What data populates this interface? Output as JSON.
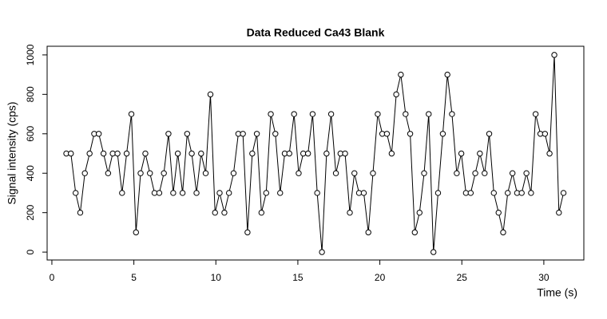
{
  "chart_data": {
    "type": "line",
    "title": "Data Reduced Ca43 Blank",
    "x_label": "Time (s)",
    "y_label": "Signal intensity (cps)",
    "x": [
      0.88,
      1.16,
      1.45,
      1.73,
      2.01,
      2.3,
      2.58,
      2.86,
      3.15,
      3.43,
      3.71,
      4.0,
      4.28,
      4.56,
      4.85,
      5.13,
      5.41,
      5.7,
      5.98,
      6.26,
      6.55,
      6.83,
      7.11,
      7.4,
      7.68,
      7.97,
      8.25,
      8.53,
      8.82,
      9.1,
      9.38,
      9.67,
      9.95,
      10.23,
      10.52,
      10.8,
      11.08,
      11.37,
      11.65,
      11.93,
      12.22,
      12.5,
      12.78,
      13.07,
      13.35,
      13.63,
      13.92,
      14.2,
      14.48,
      14.77,
      15.05,
      15.33,
      15.62,
      15.9,
      16.18,
      16.47,
      16.75,
      17.03,
      17.32,
      17.6,
      17.88,
      18.17,
      18.45,
      18.73,
      19.02,
      19.3,
      19.58,
      19.87,
      20.15,
      20.43,
      20.72,
      21.0,
      21.28,
      21.57,
      21.85,
      22.13,
      22.42,
      22.7,
      22.98,
      23.27,
      23.55,
      23.84,
      24.12,
      24.4,
      24.69,
      24.97,
      25.25,
      25.54,
      25.82,
      26.1,
      26.39,
      26.67,
      26.95,
      27.24,
      27.52,
      27.8,
      28.09,
      28.37,
      28.65,
      28.94,
      29.22,
      29.5,
      29.79,
      30.07,
      30.35,
      30.64,
      30.92,
      31.2
    ],
    "values": [
      500,
      500,
      300,
      200,
      400,
      500,
      600,
      600,
      500,
      400,
      500,
      500,
      300,
      500,
      700,
      100,
      400,
      500,
      400,
      300,
      300,
      400,
      600,
      300,
      500,
      300,
      600,
      500,
      300,
      500,
      400,
      800,
      200,
      300,
      200,
      300,
      400,
      600,
      600,
      100,
      500,
      600,
      200,
      300,
      700,
      600,
      300,
      500,
      500,
      700,
      400,
      500,
      500,
      700,
      300,
      0,
      500,
      700,
      400,
      500,
      500,
      200,
      400,
      300,
      300,
      100,
      400,
      700,
      600,
      600,
      500,
      800,
      900,
      700,
      600,
      100,
      200,
      400,
      700,
      0,
      300,
      600,
      900,
      700,
      400,
      500,
      300,
      300,
      400,
      500,
      400,
      600,
      300,
      200,
      100,
      300,
      400,
      300,
      300,
      400,
      300,
      700,
      600,
      600,
      500,
      1000,
      200,
      300
    ],
    "color": "#000000",
    "xlim": [
      -0.29,
      32.44
    ],
    "xticks": [
      0,
      5,
      10,
      15,
      20,
      25,
      30
    ],
    "ylim": [
      -40,
      1044
    ],
    "yticks": [
      0,
      200,
      400,
      600,
      800,
      1000
    ],
    "grid": false
  }
}
